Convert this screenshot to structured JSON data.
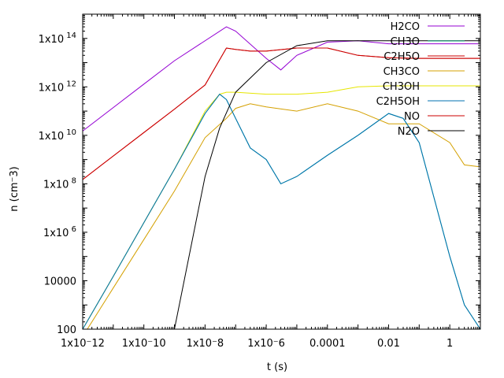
{
  "chart_data": {
    "type": "line",
    "title": "",
    "xlabel": "t (s)",
    "ylabel": "n (cm⁻3)",
    "xscale": "log",
    "yscale": "log",
    "xlim": [
      1e-12,
      10
    ],
    "ylim": [
      100,
      1000000000000000.0
    ],
    "grid": false,
    "legend_position": "top-right",
    "xticks": [
      {
        "value": 1e-12,
        "label": "1x10⁻12"
      },
      {
        "value": 1e-10,
        "label": "1x10⁻10"
      },
      {
        "value": 1e-08,
        "label": "1x10⁻8"
      },
      {
        "value": 1e-06,
        "label": "1x10⁻6"
      },
      {
        "value": 0.0001,
        "label": "0.0001"
      },
      {
        "value": 0.01,
        "label": "0.01"
      },
      {
        "value": 1,
        "label": "1"
      }
    ],
    "yticks": [
      {
        "value": 100,
        "label": "100"
      },
      {
        "value": 10000,
        "label": "10000"
      },
      {
        "value": 1000000.0,
        "label": "1x10",
        "exp": "6"
      },
      {
        "value": 100000000.0,
        "label": "1x10",
        "exp": "8"
      },
      {
        "value": 10000000000.0,
        "label": "1x10",
        "exp": "10"
      },
      {
        "value": 1000000000000.0,
        "label": "1x10",
        "exp": "12"
      },
      {
        "value": 100000000000000.0,
        "label": "1x10",
        "exp": "14"
      }
    ],
    "series": [
      {
        "name": "H2CO",
        "color": "#9400d3",
        "x": [
          1e-12,
          1e-11,
          1e-10,
          1e-09,
          5e-08,
          1e-07,
          1e-06,
          3e-06,
          1e-05,
          0.0001,
          0.001,
          0.01,
          0.1,
          1,
          10
        ],
        "y": [
          15000000000.0,
          140000000000.0,
          1300000000000.0,
          12000000000000.0,
          300000000000000.0,
          200000000000000.0,
          15000000000000.0,
          5000000000000.0,
          20000000000000.0,
          70000000000000.0,
          80000000000000.0,
          60000000000000.0,
          60000000000000.0,
          60000000000000.0,
          60000000000000.0
        ]
      },
      {
        "name": "CH3O",
        "color": "#009e73",
        "x": [
          1e-12,
          1e-11,
          1e-10,
          1e-09,
          1e-08,
          3e-08,
          5e-08,
          1e-07,
          3e-07,
          1e-06,
          3e-06,
          1e-05,
          0.0001,
          0.001,
          0.01,
          0.03,
          0.1,
          1,
          3,
          10
        ],
        "y": [
          100,
          15000.0,
          2500000.0,
          400000000.0,
          80000000000.0,
          500000000000.0,
          300000000000.0,
          50000000000.0,
          3000000000.0,
          1000000000.0,
          100000000.0,
          200000000.0,
          1500000000.0,
          10000000000.0,
          80000000000.0,
          50000000000.0,
          5000000000.0,
          100000.0,
          1000,
          100
        ]
      },
      {
        "name": "C2H5O",
        "color": "#cc0000",
        "x": [
          1e-12,
          1e-11,
          1e-10,
          1e-09,
          1e-08,
          5e-08,
          1e-07,
          3e-07,
          1e-06,
          1e-05,
          0.0001,
          0.001,
          0.01,
          0.1,
          1,
          10
        ],
        "y": [
          150000000.0,
          1400000000.0,
          13000000000.0,
          120000000000.0,
          1200000000000.0,
          40000000000000.0,
          35000000000000.0,
          30000000000000.0,
          30000000000000.0,
          40000000000000.0,
          40000000000000.0,
          20000000000000.0,
          16000000000000.0,
          15000000000000.0,
          15000000000000.0,
          15000000000000.0
        ]
      },
      {
        "name": "CH3CO",
        "color": "#d4a000",
        "x": [
          1e-12,
          1e-11,
          1e-10,
          1e-09,
          1e-08,
          5e-08,
          1e-07,
          3e-07,
          1e-06,
          1e-05,
          0.0001,
          0.001,
          0.01,
          0.1,
          1,
          3,
          10
        ],
        "y": [
          50,
          5000.0,
          500000.0,
          50000000.0,
          8000000000.0,
          50000000000.0,
          130000000000.0,
          200000000000.0,
          150000000000.0,
          100000000000.0,
          200000000000.0,
          100000000000.0,
          30000000000.0,
          30000000000.0,
          5000000000.0,
          600000000.0,
          500000000.0
        ]
      },
      {
        "name": "CH3OH",
        "color": "#e6e600",
        "x": [
          1e-12,
          1e-11,
          1e-10,
          1e-09,
          1e-08,
          3e-08,
          5e-08,
          1e-07,
          1e-06,
          1e-05,
          0.0001,
          0.001,
          0.01,
          0.1,
          1,
          10
        ],
        "y": [
          100,
          15000.0,
          2500000.0,
          400000000.0,
          100000000000.0,
          500000000000.0,
          600000000000.0,
          600000000000.0,
          500000000000.0,
          500000000000.0,
          600000000000.0,
          1000000000000.0,
          1100000000000.0,
          1100000000000.0,
          1100000000000.0,
          1100000000000.0
        ]
      },
      {
        "name": "C2H5OH",
        "color": "#0072b2",
        "x": [
          1e-12,
          1e-11,
          1e-10,
          1e-09,
          1e-08,
          3e-08,
          5e-08,
          1e-07,
          3e-07,
          1e-06,
          3e-06,
          1e-05,
          0.0001,
          0.001,
          0.01,
          0.03,
          0.1,
          1,
          3,
          10
        ],
        "y": [
          100,
          15000.0,
          2500000.0,
          400000000.0,
          80000000000.0,
          500000000000.0,
          300000000000.0,
          50000000000.0,
          3000000000.0,
          1000000000.0,
          100000000.0,
          200000000.0,
          1500000000.0,
          10000000000.0,
          80000000000.0,
          50000000000.0,
          5000000000.0,
          100000.0,
          1000,
          100
        ]
      },
      {
        "name": "NO",
        "color": "#cc0000",
        "x": [
          1e-12,
          1e-11,
          1e-10,
          1e-09,
          1e-08,
          5e-08,
          1e-07,
          3e-07,
          1e-06,
          1e-05,
          0.0001,
          0.001,
          0.01,
          0.1,
          1,
          10
        ],
        "y": [
          150000000.0,
          1400000000.0,
          13000000000.0,
          120000000000.0,
          1200000000000.0,
          40000000000000.0,
          35000000000000.0,
          30000000000000.0,
          30000000000000.0,
          40000000000000.0,
          40000000000000.0,
          20000000000000.0,
          16000000000000.0,
          15000000000000.0,
          15000000000000.0,
          15000000000000.0
        ]
      },
      {
        "name": "N2O",
        "color": "#000000",
        "x": [
          1e-09,
          1e-08,
          3e-08,
          1e-07,
          1e-06,
          1e-05,
          0.0001,
          0.001,
          0.01,
          0.1,
          1,
          10
        ],
        "y": [
          100,
          200000000.0,
          20000000000.0,
          600000000000.0,
          10000000000000.0,
          50000000000000.0,
          80000000000000.0,
          80000000000000.0,
          80000000000000.0,
          80000000000000.0,
          80000000000000.0,
          80000000000000.0
        ]
      }
    ]
  }
}
